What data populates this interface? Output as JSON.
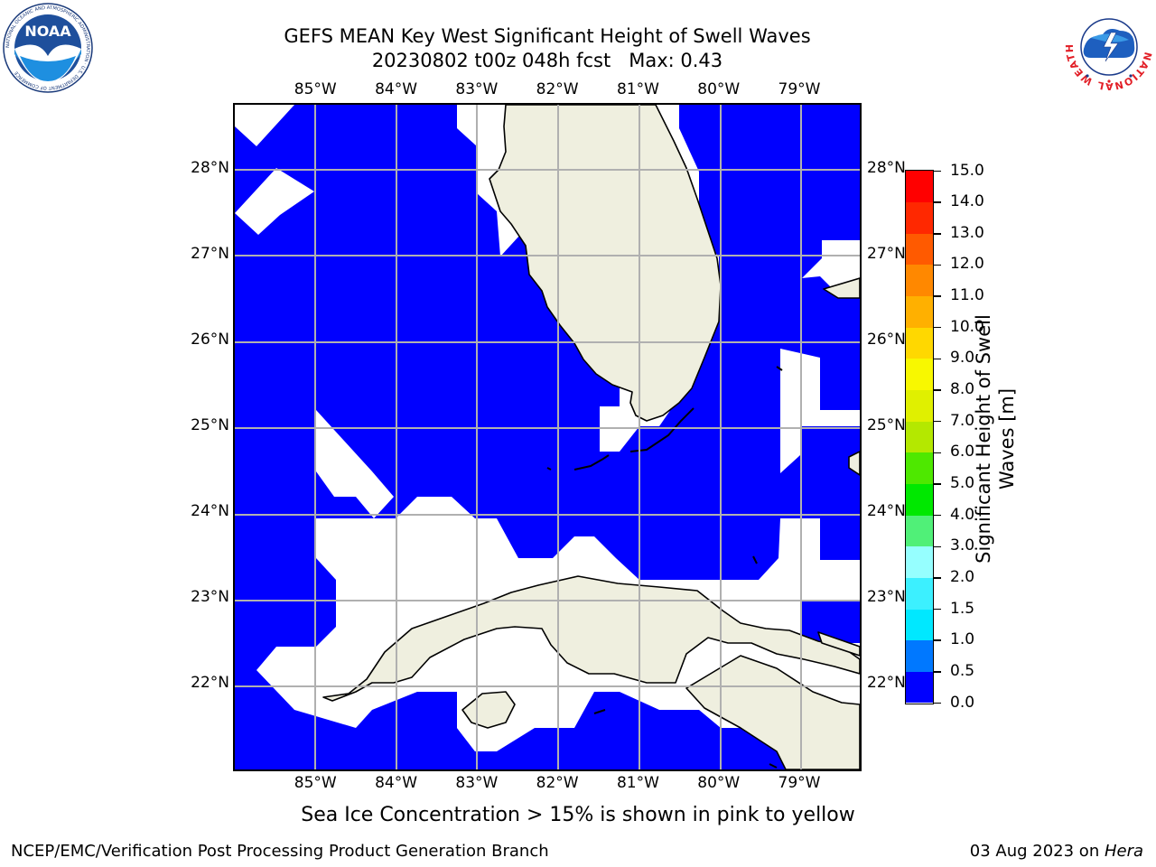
{
  "title": {
    "line1": "GEFS MEAN Key West Significant Height of Swell Waves",
    "line2": "20230802 t00z 048h fcst   Max: 0.43"
  },
  "map": {
    "lon_labels": [
      "85°W",
      "84°W",
      "83°W",
      "82°W",
      "81°W",
      "80°W",
      "79°W"
    ],
    "lat_labels": [
      "28°N",
      "27°N",
      "26°N",
      "25°N",
      "24°N",
      "23°N",
      "22°N"
    ],
    "lon_range": [
      -86.0,
      -78.25
    ],
    "lat_range": [
      21.0,
      28.75
    ],
    "grid": true,
    "colors": {
      "ocean_low": "#0000ff",
      "land": "#efefdf",
      "no_data": "#ffffff",
      "grid": "#b0b0b0"
    }
  },
  "colorbar": {
    "label": "Significant Height of Swell Waves [m]",
    "ticks": [
      "15.0",
      "14.0",
      "13.0",
      "12.0",
      "11.0",
      "10.0",
      "9.0",
      "8.0",
      "7.0",
      "6.0",
      "5.0",
      "4.0",
      "3.0",
      "2.0",
      "1.5",
      "1.0",
      "0.5",
      "0.0"
    ],
    "bins": [
      {
        "from": 0.0,
        "to": 0.5,
        "color": "#0000ff"
      },
      {
        "from": 0.5,
        "to": 1.0,
        "color": "#0078ff"
      },
      {
        "from": 1.0,
        "to": 1.5,
        "color": "#00e8ff"
      },
      {
        "from": 1.5,
        "to": 2.0,
        "color": "#3cf0ff"
      },
      {
        "from": 2.0,
        "to": 3.0,
        "color": "#96ffff"
      },
      {
        "from": 3.0,
        "to": 4.0,
        "color": "#50f078"
      },
      {
        "from": 4.0,
        "to": 5.0,
        "color": "#00e800"
      },
      {
        "from": 5.0,
        "to": 6.0,
        "color": "#4ee800"
      },
      {
        "from": 6.0,
        "to": 7.0,
        "color": "#b4e800"
      },
      {
        "from": 7.0,
        "to": 8.0,
        "color": "#e0f000"
      },
      {
        "from": 8.0,
        "to": 9.0,
        "color": "#f8f800"
      },
      {
        "from": 9.0,
        "to": 10.0,
        "color": "#ffd800"
      },
      {
        "from": 10.0,
        "to": 11.0,
        "color": "#ffb000"
      },
      {
        "from": 11.0,
        "to": 12.0,
        "color": "#ff8800"
      },
      {
        "from": 12.0,
        "to": 13.0,
        "color": "#ff5a00"
      },
      {
        "from": 13.0,
        "to": 14.0,
        "color": "#ff2800"
      },
      {
        "from": 14.0,
        "to": 15.0,
        "color": "#ff0000"
      }
    ]
  },
  "note": "Sea Ice Concentration > 15% is shown in pink to yellow",
  "footer": {
    "left": "NCEP/EMC/Verification Post Processing Product Generation Branch",
    "date": "03 Aug 2023 on ",
    "machine": "Hera"
  },
  "logos": {
    "noaa": {
      "text": "NOAA",
      "ring_text": "NATIONAL OCEANIC AND ATMOSPHERIC ADMINISTRATION · U.S. DEPARTMENT OF COMMERCE"
    },
    "nws": {
      "ring_text": "NATIONAL WEATHER SERVICE"
    }
  }
}
